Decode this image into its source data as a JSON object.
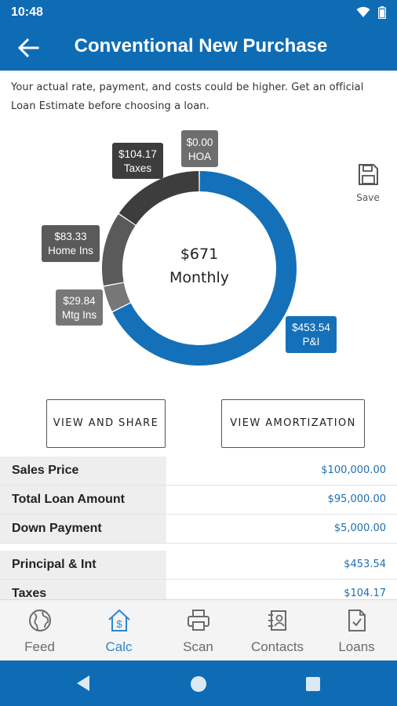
{
  "status": {
    "time": "10:48"
  },
  "header": {
    "title": "Conventional New Purchase"
  },
  "disclaimer": "Your actual rate, payment, and costs could be higher. Get an official Loan Estimate before choosing a loan.",
  "chart_data": {
    "type": "donut",
    "center": {
      "amount": "$671",
      "label": "Monthly"
    },
    "slices": [
      {
        "name": "P&I",
        "value": 453.54,
        "label": "$453.54",
        "color": "#1470b8"
      },
      {
        "name": "Mtg Ins",
        "value": 29.84,
        "label": "$29.84",
        "color": "#777777"
      },
      {
        "name": "Home Ins",
        "value": 83.33,
        "label": "$83.33",
        "color": "#5a5a5a"
      },
      {
        "name": "Taxes",
        "value": 104.17,
        "label": "$104.17",
        "color": "#3d3d3d"
      },
      {
        "name": "HOA",
        "value": 0.0,
        "label": "$0.00",
        "color": "#6e6e6e"
      }
    ]
  },
  "save": {
    "label": "Save"
  },
  "buttons": {
    "share": "VIEW AND SHARE",
    "amort": "VIEW AMORTIZATION"
  },
  "table": {
    "rows": [
      {
        "label": "Sales Price",
        "value": "$100,000.00"
      },
      {
        "label": "Total Loan Amount",
        "value": "$95,000.00"
      },
      {
        "label": "Down Payment",
        "value": "$5,000.00"
      },
      {
        "label": "Principal & Int",
        "value": "$453.54"
      },
      {
        "label": "Taxes",
        "value": "$104.17"
      }
    ]
  },
  "nav": {
    "items": [
      {
        "label": "Feed",
        "icon": "globe-icon"
      },
      {
        "label": "Calc",
        "icon": "home-calculator-icon"
      },
      {
        "label": "Scan",
        "icon": "printer-icon"
      },
      {
        "label": "Contacts",
        "icon": "contacts-icon"
      },
      {
        "label": "Loans",
        "icon": "document-check-icon"
      }
    ],
    "active": "Calc"
  },
  "colors": {
    "primary": "#0e6cb5",
    "accent": "#2e86d0",
    "value_text": "#1f6fb2"
  }
}
